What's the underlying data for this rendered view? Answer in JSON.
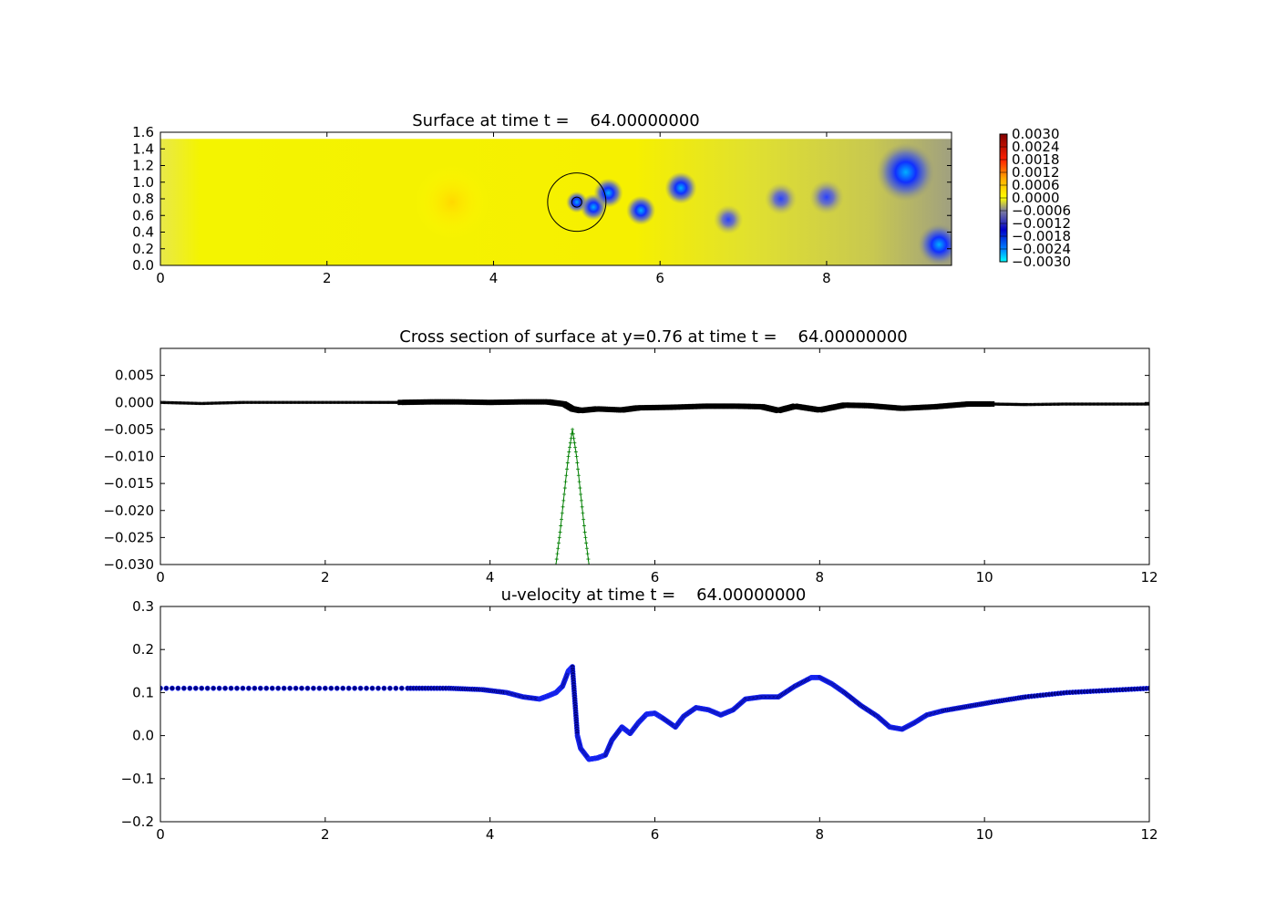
{
  "chart_data": [
    {
      "type": "heatmap",
      "title": "Surface at time t =    64.00000000",
      "xlim": [
        0,
        9.5
      ],
      "ylim": [
        0,
        1.6
      ],
      "xticks": [
        "0",
        "2",
        "4",
        "6",
        "8"
      ],
      "yticks": [
        "0.0",
        "0.2",
        "0.4",
        "0.6",
        "0.8",
        "1.0",
        "1.2",
        "1.4",
        "1.6"
      ],
      "colorbar": {
        "ticks": [
          "0.0030",
          "0.0024",
          "0.0018",
          "0.0012",
          "0.0006",
          "0.0000",
          "−0.0006",
          "−0.0012",
          "−0.0018",
          "−0.0024",
          "−0.0030"
        ],
        "range": [
          -0.003,
          0.003
        ]
      },
      "background_value": 0.0,
      "features": [
        {
          "x": 3.5,
          "y": 0.76,
          "r": 0.45,
          "value": 0.0003
        },
        {
          "x": 5.0,
          "y": 0.76,
          "r": 0.08,
          "value": -0.0018
        },
        {
          "x": 5.2,
          "y": 0.7,
          "r": 0.1,
          "value": -0.002
        },
        {
          "x": 5.38,
          "y": 0.87,
          "r": 0.11,
          "value": -0.0022
        },
        {
          "x": 5.77,
          "y": 0.66,
          "r": 0.11,
          "value": -0.002
        },
        {
          "x": 6.25,
          "y": 0.93,
          "r": 0.12,
          "value": -0.0019
        },
        {
          "x": 6.82,
          "y": 0.55,
          "r": 0.11,
          "value": -0.0016
        },
        {
          "x": 7.45,
          "y": 0.8,
          "r": 0.12,
          "value": -0.0013
        },
        {
          "x": 8.0,
          "y": 0.82,
          "r": 0.13,
          "value": -0.0014
        },
        {
          "x": 8.95,
          "y": 1.12,
          "r": 0.22,
          "value": -0.0026
        },
        {
          "x": 9.35,
          "y": 0.25,
          "r": 0.16,
          "value": -0.0025
        }
      ],
      "outline_circles": [
        {
          "x": 5.0,
          "y": 0.76,
          "r": 0.35
        },
        {
          "x": 5.0,
          "y": 0.76,
          "r": 0.06
        }
      ],
      "grid": false
    },
    {
      "type": "line",
      "title": "Cross section of surface at y=0.76 at time t =    64.00000000",
      "xlim": [
        0,
        12
      ],
      "ylim": [
        -0.03,
        0.01
      ],
      "xticks": [
        "0",
        "2",
        "4",
        "6",
        "8",
        "10",
        "12"
      ],
      "yticks": [
        "0.005",
        "0.000",
        "−0.005",
        "−0.010",
        "−0.015",
        "−0.020",
        "−0.025",
        "−0.030"
      ],
      "series": [
        {
          "color": "#000000",
          "marker": "x",
          "x": [
            0,
            0.5,
            1,
            1.5,
            2,
            2.5,
            2.9,
            3.3,
            3.6,
            4.0,
            4.4,
            4.7,
            4.9,
            5.0,
            5.1,
            5.3,
            5.6,
            5.8,
            6.2,
            6.6,
            7.0,
            7.3,
            7.5,
            7.7,
            8.0,
            8.3,
            8.6,
            9.0,
            9.4,
            9.8,
            10.1,
            10.5,
            11,
            11.5,
            12
          ],
          "y": [
            0.0,
            -0.0002,
            0.0,
            0.0,
            0.0,
            0.0,
            0.0,
            0.0001,
            0.0001,
            0.0,
            0.0001,
            0.0001,
            -0.0003,
            -0.0012,
            -0.0015,
            -0.0012,
            -0.0014,
            -0.001,
            -0.0009,
            -0.0007,
            -0.0007,
            -0.0008,
            -0.0015,
            -0.0007,
            -0.0014,
            -0.0005,
            -0.0006,
            -0.0011,
            -0.0008,
            -0.0003,
            -0.0003,
            -0.0004,
            -0.0003,
            -0.0003,
            -0.0003
          ]
        },
        {
          "color": "#007f00",
          "marker": "+",
          "x": [
            4.8,
            4.85,
            4.9,
            4.95,
            5.0,
            5.05,
            5.1,
            5.15,
            5.2
          ],
          "y": [
            -0.03,
            -0.024,
            -0.017,
            -0.01,
            -0.005,
            -0.01,
            -0.017,
            -0.024,
            -0.03
          ]
        }
      ],
      "grid": false
    },
    {
      "type": "scatter",
      "title": "u-velocity at time t =    64.00000000",
      "xlim": [
        0,
        12
      ],
      "ylim": [
        -0.2,
        0.3
      ],
      "xticks": [
        "0",
        "2",
        "4",
        "6",
        "8",
        "10",
        "12"
      ],
      "yticks": [
        "0.3",
        "0.2",
        "0.1",
        "0.0",
        "−0.1",
        "−0.2"
      ],
      "series": [
        {
          "color": "#00007f",
          "marker": "o",
          "x": [
            0,
            1,
            2,
            3,
            3.5,
            3.9,
            4.2,
            4.4,
            4.6,
            4.7,
            4.8,
            4.88,
            4.95,
            5.0,
            5.03,
            5.06,
            5.1,
            5.2,
            5.3,
            5.4,
            5.48,
            5.6,
            5.7,
            5.8,
            5.9,
            6.0,
            6.1,
            6.25,
            6.35,
            6.5,
            6.65,
            6.8,
            6.95,
            7.1,
            7.3,
            7.5,
            7.7,
            7.9,
            8.0,
            8.15,
            8.3,
            8.5,
            8.7,
            8.85,
            9.0,
            9.15,
            9.3,
            9.5,
            9.8,
            10.1,
            10.5,
            11,
            11.5,
            12
          ],
          "y": [
            0.11,
            0.11,
            0.11,
            0.11,
            0.11,
            0.107,
            0.1,
            0.09,
            0.085,
            0.092,
            0.1,
            0.115,
            0.15,
            0.16,
            0.08,
            0.0,
            -0.03,
            -0.055,
            -0.052,
            -0.045,
            -0.01,
            0.02,
            0.005,
            0.03,
            0.05,
            0.052,
            0.04,
            0.02,
            0.045,
            0.065,
            0.06,
            0.048,
            0.06,
            0.085,
            0.09,
            0.09,
            0.115,
            0.135,
            0.135,
            0.12,
            0.1,
            0.07,
            0.045,
            0.02,
            0.015,
            0.03,
            0.048,
            0.058,
            0.068,
            0.078,
            0.09,
            0.1,
            0.105,
            0.11
          ]
        }
      ],
      "grid": false
    }
  ]
}
